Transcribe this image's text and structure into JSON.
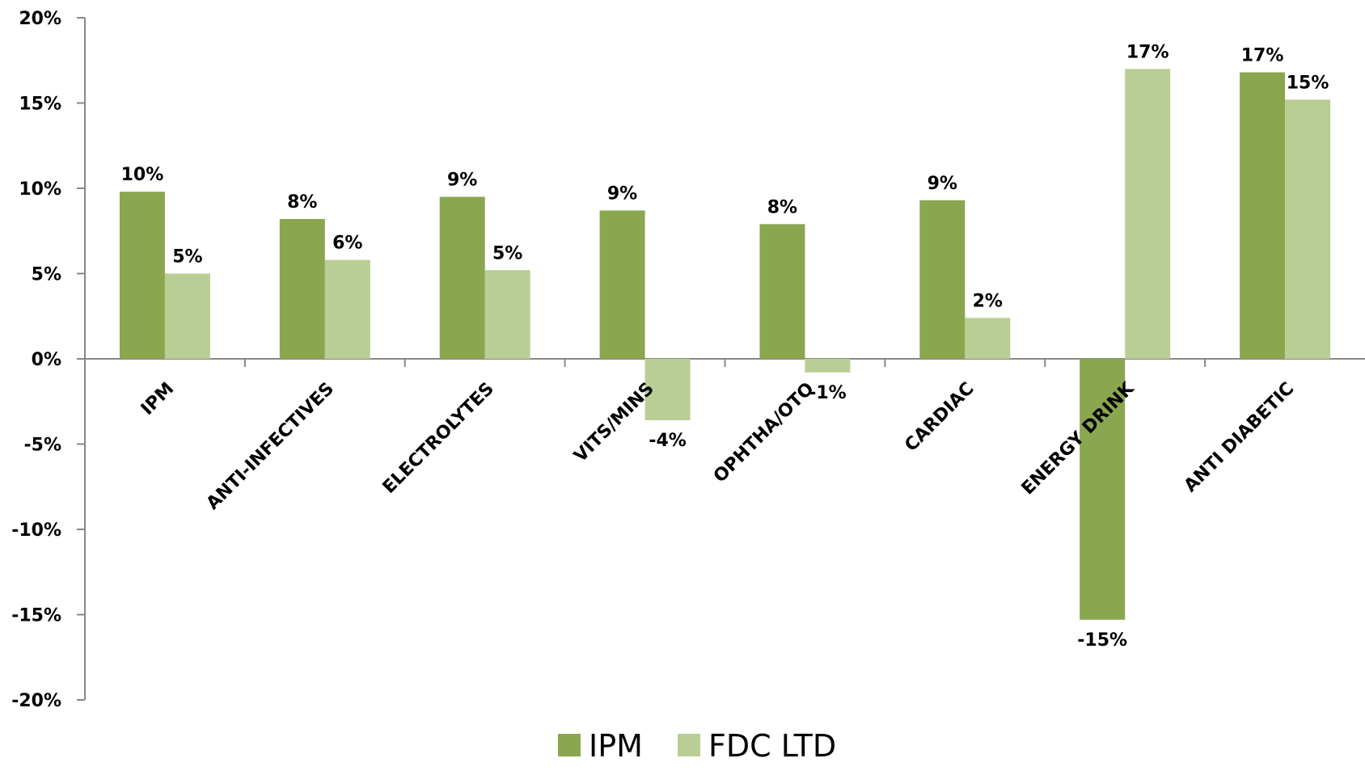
{
  "chart_data": {
    "type": "bar",
    "categories": [
      "IPM",
      "ANTI-INFECTIVES",
      "ELECTROLYTES",
      "VITS/MINS",
      "OPHTHA/OTO",
      "CARDIAC",
      "ENERGY DRINK",
      "ANTI DIABETIC"
    ],
    "series": [
      {
        "name": "IPM",
        "color": "#8aa64f",
        "values": [
          9.8,
          8.2,
          9.5,
          8.7,
          7.9,
          9.3,
          -15.3,
          16.8
        ],
        "labels": [
          "10%",
          "8%",
          "9%",
          "9%",
          "8%",
          "9%",
          "-15%",
          "17%"
        ]
      },
      {
        "name": "FDC LTD",
        "color": "#b8ce95",
        "values": [
          5.0,
          5.8,
          5.2,
          -3.6,
          -0.8,
          2.4,
          17.0,
          15.2
        ],
        "labels": [
          "5%",
          "6%",
          "5%",
          "-4%",
          "-1%",
          "2%",
          "17%",
          "15%"
        ]
      }
    ],
    "ylim": [
      -20,
      20
    ],
    "yticks": [
      20,
      15,
      10,
      5,
      0,
      -5,
      -10,
      -15,
      -20
    ],
    "ytick_labels": [
      "20%",
      "15%",
      "10%",
      "5%",
      "0%",
      "-5%",
      "-10%",
      "-15%",
      "-20%"
    ],
    "grid": false,
    "legend_position": "bottom",
    "title": "",
    "xlabel": "",
    "ylabel": ""
  }
}
